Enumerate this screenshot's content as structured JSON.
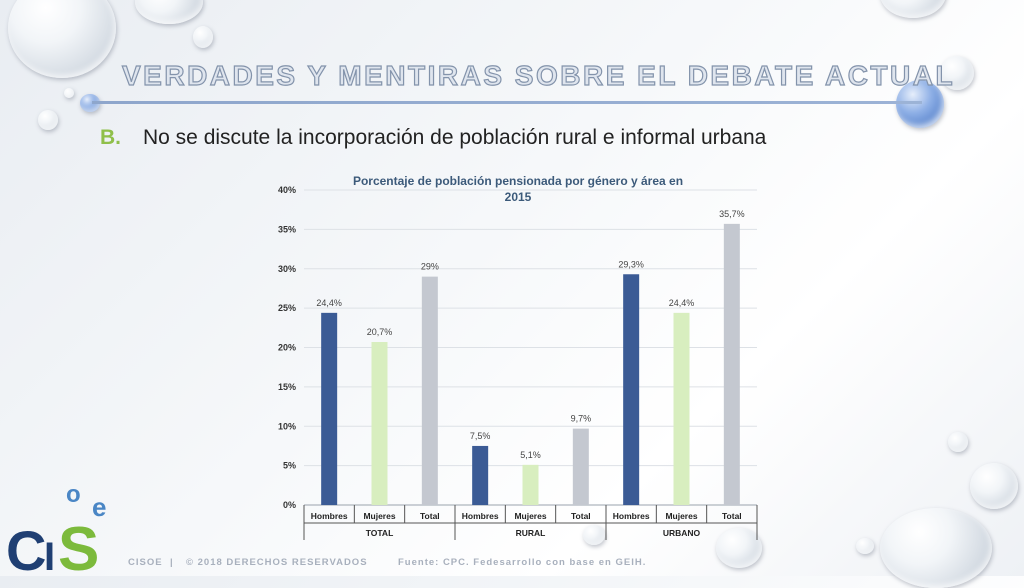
{
  "slide": {
    "title": "VERDADES Y MENTIRAS SOBRE EL DEBATE ACTUAL",
    "subtitle_letter": "B.",
    "subtitle_text": "No se discute la incorporación de población rural e informal urbana"
  },
  "footer": {
    "brand": "CISOE",
    "separator": "|",
    "copyright": "© 2018 DERECHOS RESERVADOS",
    "source": "Fuente: CPC. Fedesarrollo con base en GEIH."
  },
  "logo": {
    "letters": [
      "C",
      "I",
      "S",
      "o",
      "e"
    ],
    "colors": {
      "dark_blue": "#1f3f73",
      "green": "#7cba3c",
      "light_blue": "#4a86c5"
    }
  },
  "chart_data": {
    "type": "bar",
    "title_lines": [
      "Porcentaje de población pensionada por género y área en",
      "2015"
    ],
    "groups": [
      "TOTAL",
      "RURAL",
      "URBANO"
    ],
    "categories": [
      "Hombres",
      "Mujeres",
      "Total",
      "Hombres",
      "Mujeres",
      "Total",
      "Hombres",
      "Mujeres",
      "Total"
    ],
    "values": [
      24.4,
      20.7,
      29.0,
      7.5,
      5.1,
      9.7,
      29.3,
      24.4,
      35.7
    ],
    "data_labels": [
      "24,4%",
      "20,7%",
      "29%",
      "7,5%",
      "5,1%",
      "9,7%",
      "29,3%",
      "24,4%",
      "35,7%"
    ],
    "bar_colors": [
      "#3b5b95",
      "#d8eebf",
      "#c4c8d0",
      "#3b5b95",
      "#d8eebf",
      "#c4c8d0",
      "#3b5b95",
      "#d8eebf",
      "#c4c8d0"
    ],
    "ylim": [
      0,
      40
    ],
    "yticks": [
      0,
      5,
      10,
      15,
      20,
      25,
      30,
      35,
      40
    ],
    "ytick_labels": [
      "0%",
      "5%",
      "10%",
      "15%",
      "20%",
      "25%",
      "30%",
      "35%",
      "40%"
    ],
    "grid": true,
    "xlabel": "",
    "ylabel": ""
  }
}
